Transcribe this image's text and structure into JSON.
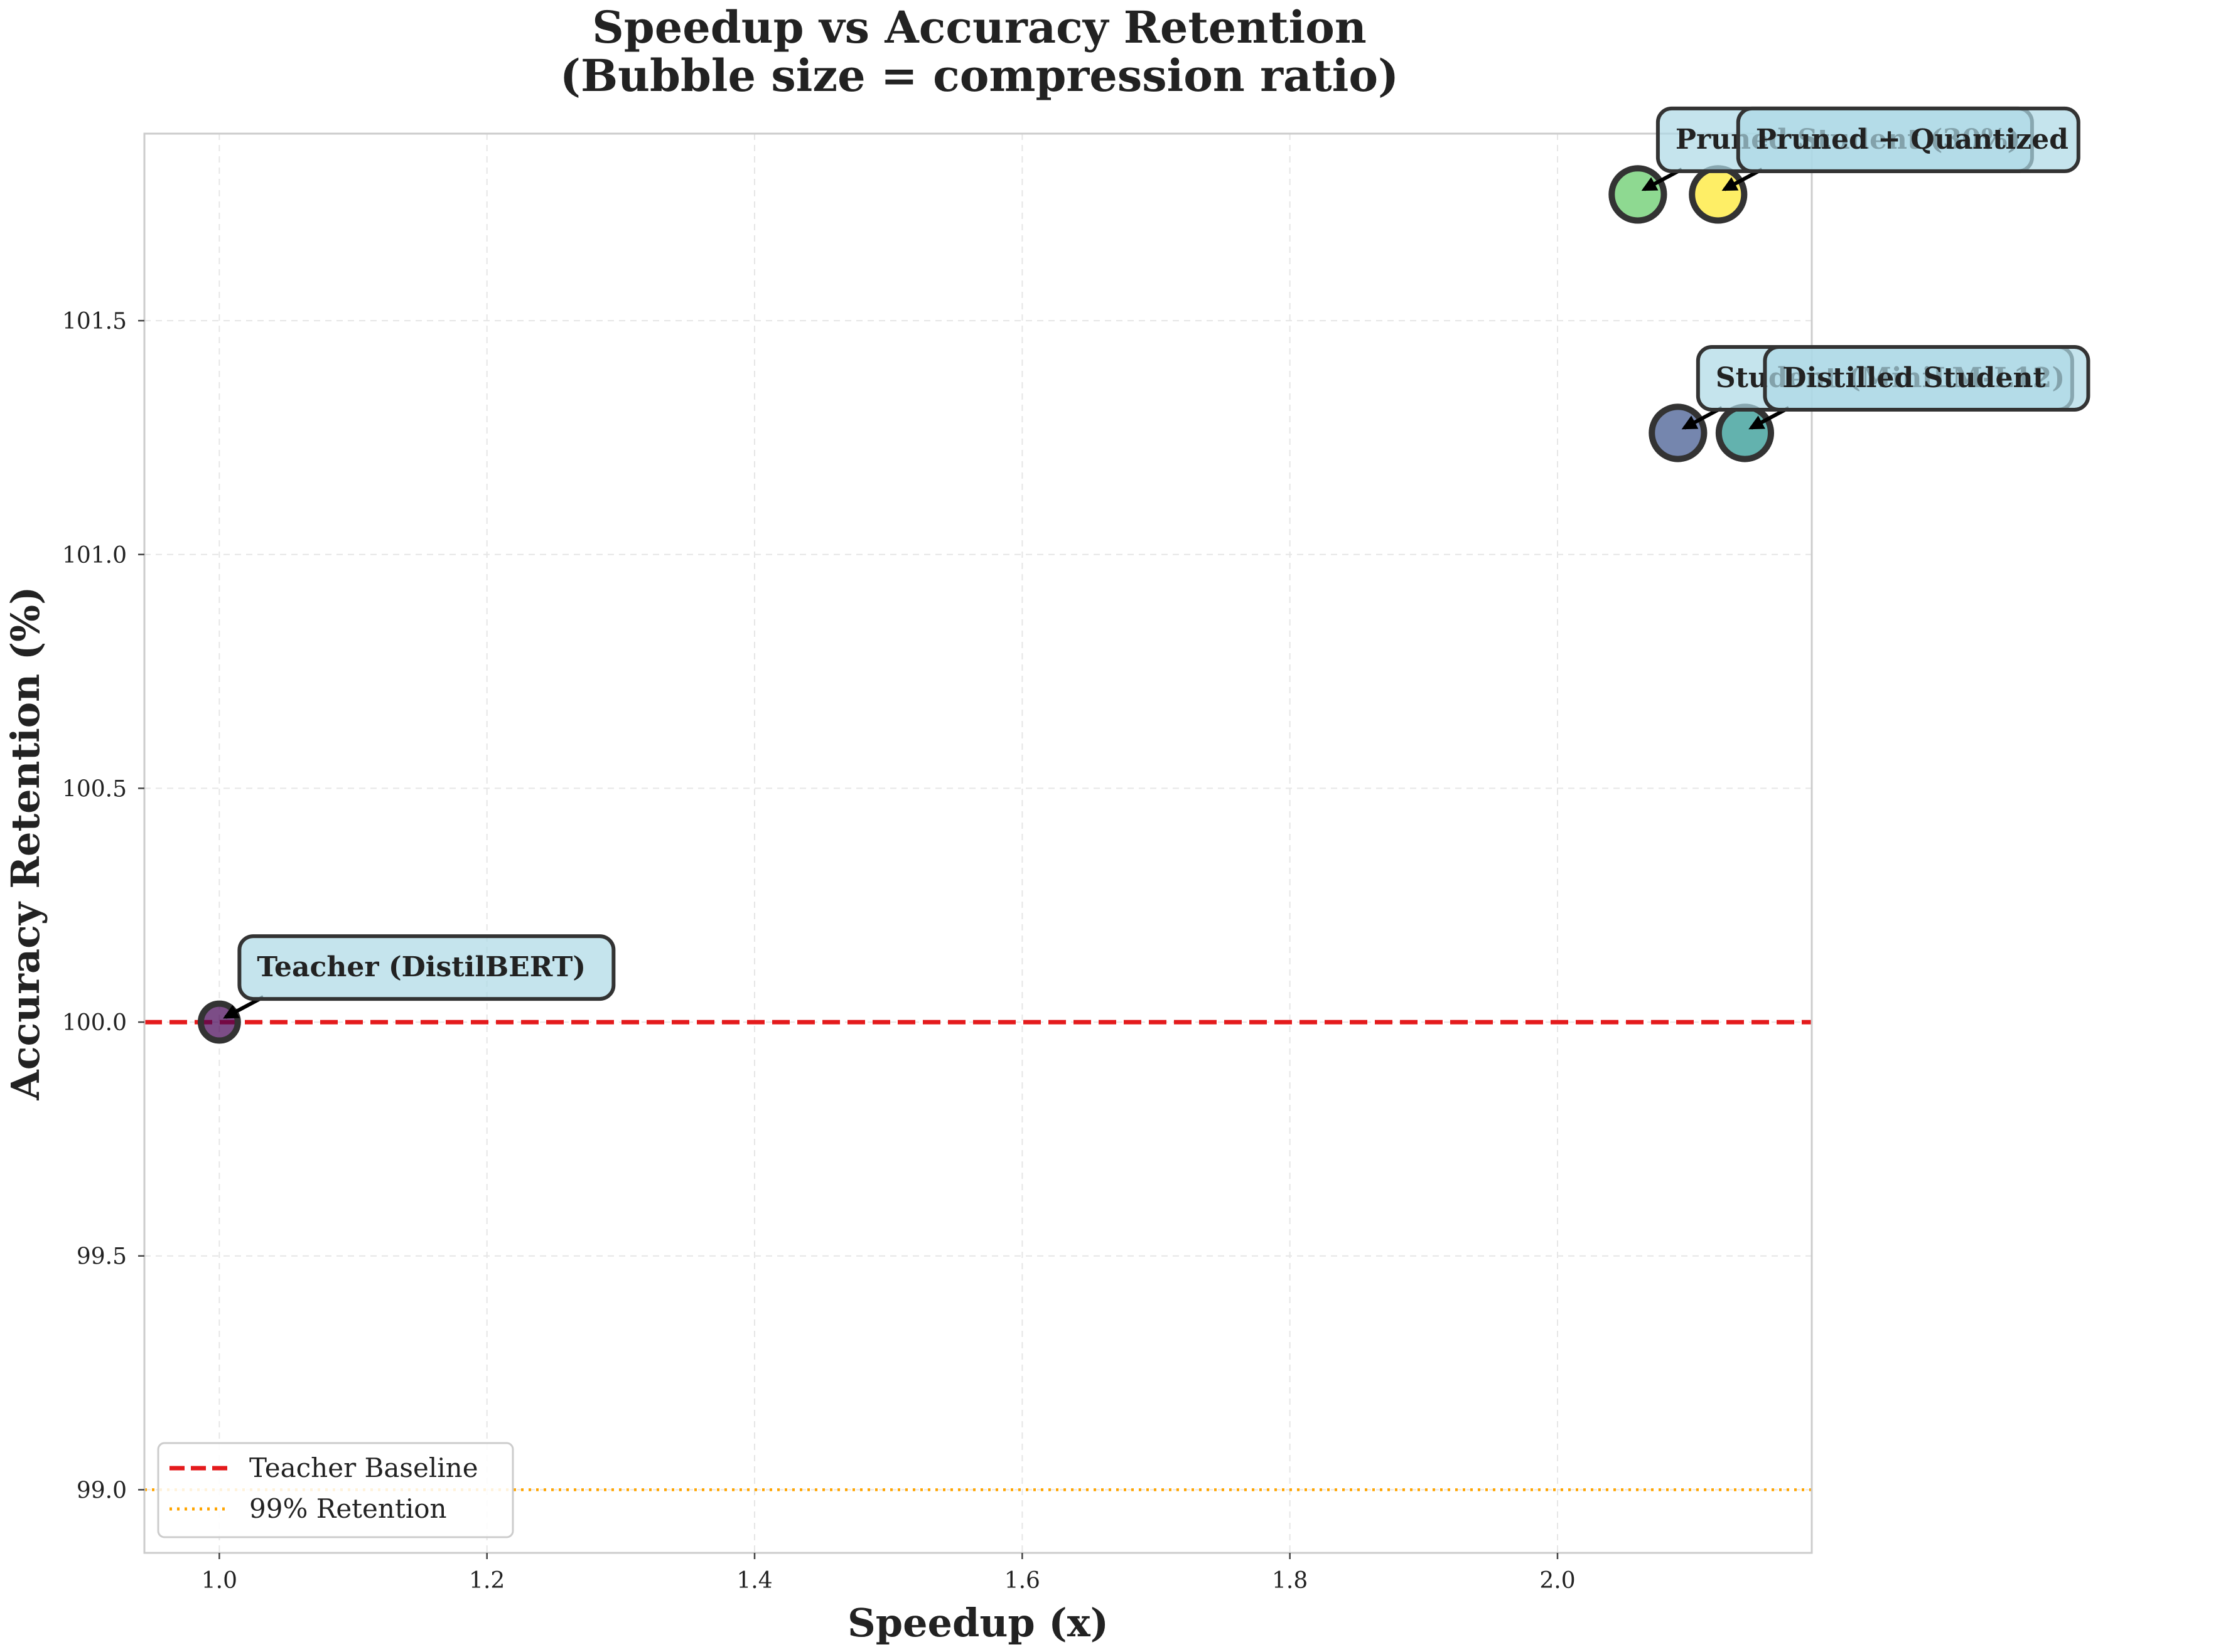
{
  "chart_data": {
    "type": "scatter",
    "title": [
      "Speedup vs Accuracy Retention",
      "(Bubble size = compression ratio)"
    ],
    "xlabel": "Speedup (x)",
    "ylabel": "Accuracy Retention (%)",
    "xlim": [
      0.944,
      2.19
    ],
    "ylim": [
      98.865,
      101.9
    ],
    "xticks": [
      1.0,
      1.2,
      1.4,
      1.6,
      1.8,
      2.0
    ],
    "xtick_labels": [
      "1.0",
      "1.2",
      "1.4",
      "1.6",
      "1.8",
      "2.0"
    ],
    "yticks": [
      99.0,
      99.5,
      100.0,
      100.5,
      101.0,
      101.5
    ],
    "ytick_labels": [
      "99.0",
      "99.5",
      "100.0",
      "100.5",
      "101.0",
      "101.5"
    ],
    "grid": true,
    "points": [
      {
        "label": "Teacher (DistilBERT)",
        "x": 1.0,
        "y": 100.0,
        "color": "#440154",
        "compression_ratio": 1.0
      },
      {
        "label": "Student (MiniLM-L12)",
        "x": 2.09,
        "y": 101.26,
        "color": "#3b528b",
        "compression_ratio": 2.0
      },
      {
        "label": "Distilled Student",
        "x": 2.14,
        "y": 101.26,
        "color": "#21918c",
        "compression_ratio": 2.0
      },
      {
        "label": "Pruned Student (30%)",
        "x": 2.06,
        "y": 101.77,
        "color": "#5ec962",
        "compression_ratio": 2.0
      },
      {
        "label": "Pruned + Quantized",
        "x": 2.12,
        "y": 101.77,
        "color": "#fde725",
        "compression_ratio": 2.0
      }
    ],
    "reference_lines": [
      {
        "name": "Teacher Baseline",
        "y": 100.0,
        "color": "#e41a1c",
        "style": "dashed"
      },
      {
        "name": "99% Retention",
        "y": 99.0,
        "color": "#ffa500",
        "style": "dotted"
      }
    ],
    "legend": {
      "placement": "lower-left",
      "entries": [
        "Teacher Baseline",
        "99% Retention"
      ]
    }
  }
}
